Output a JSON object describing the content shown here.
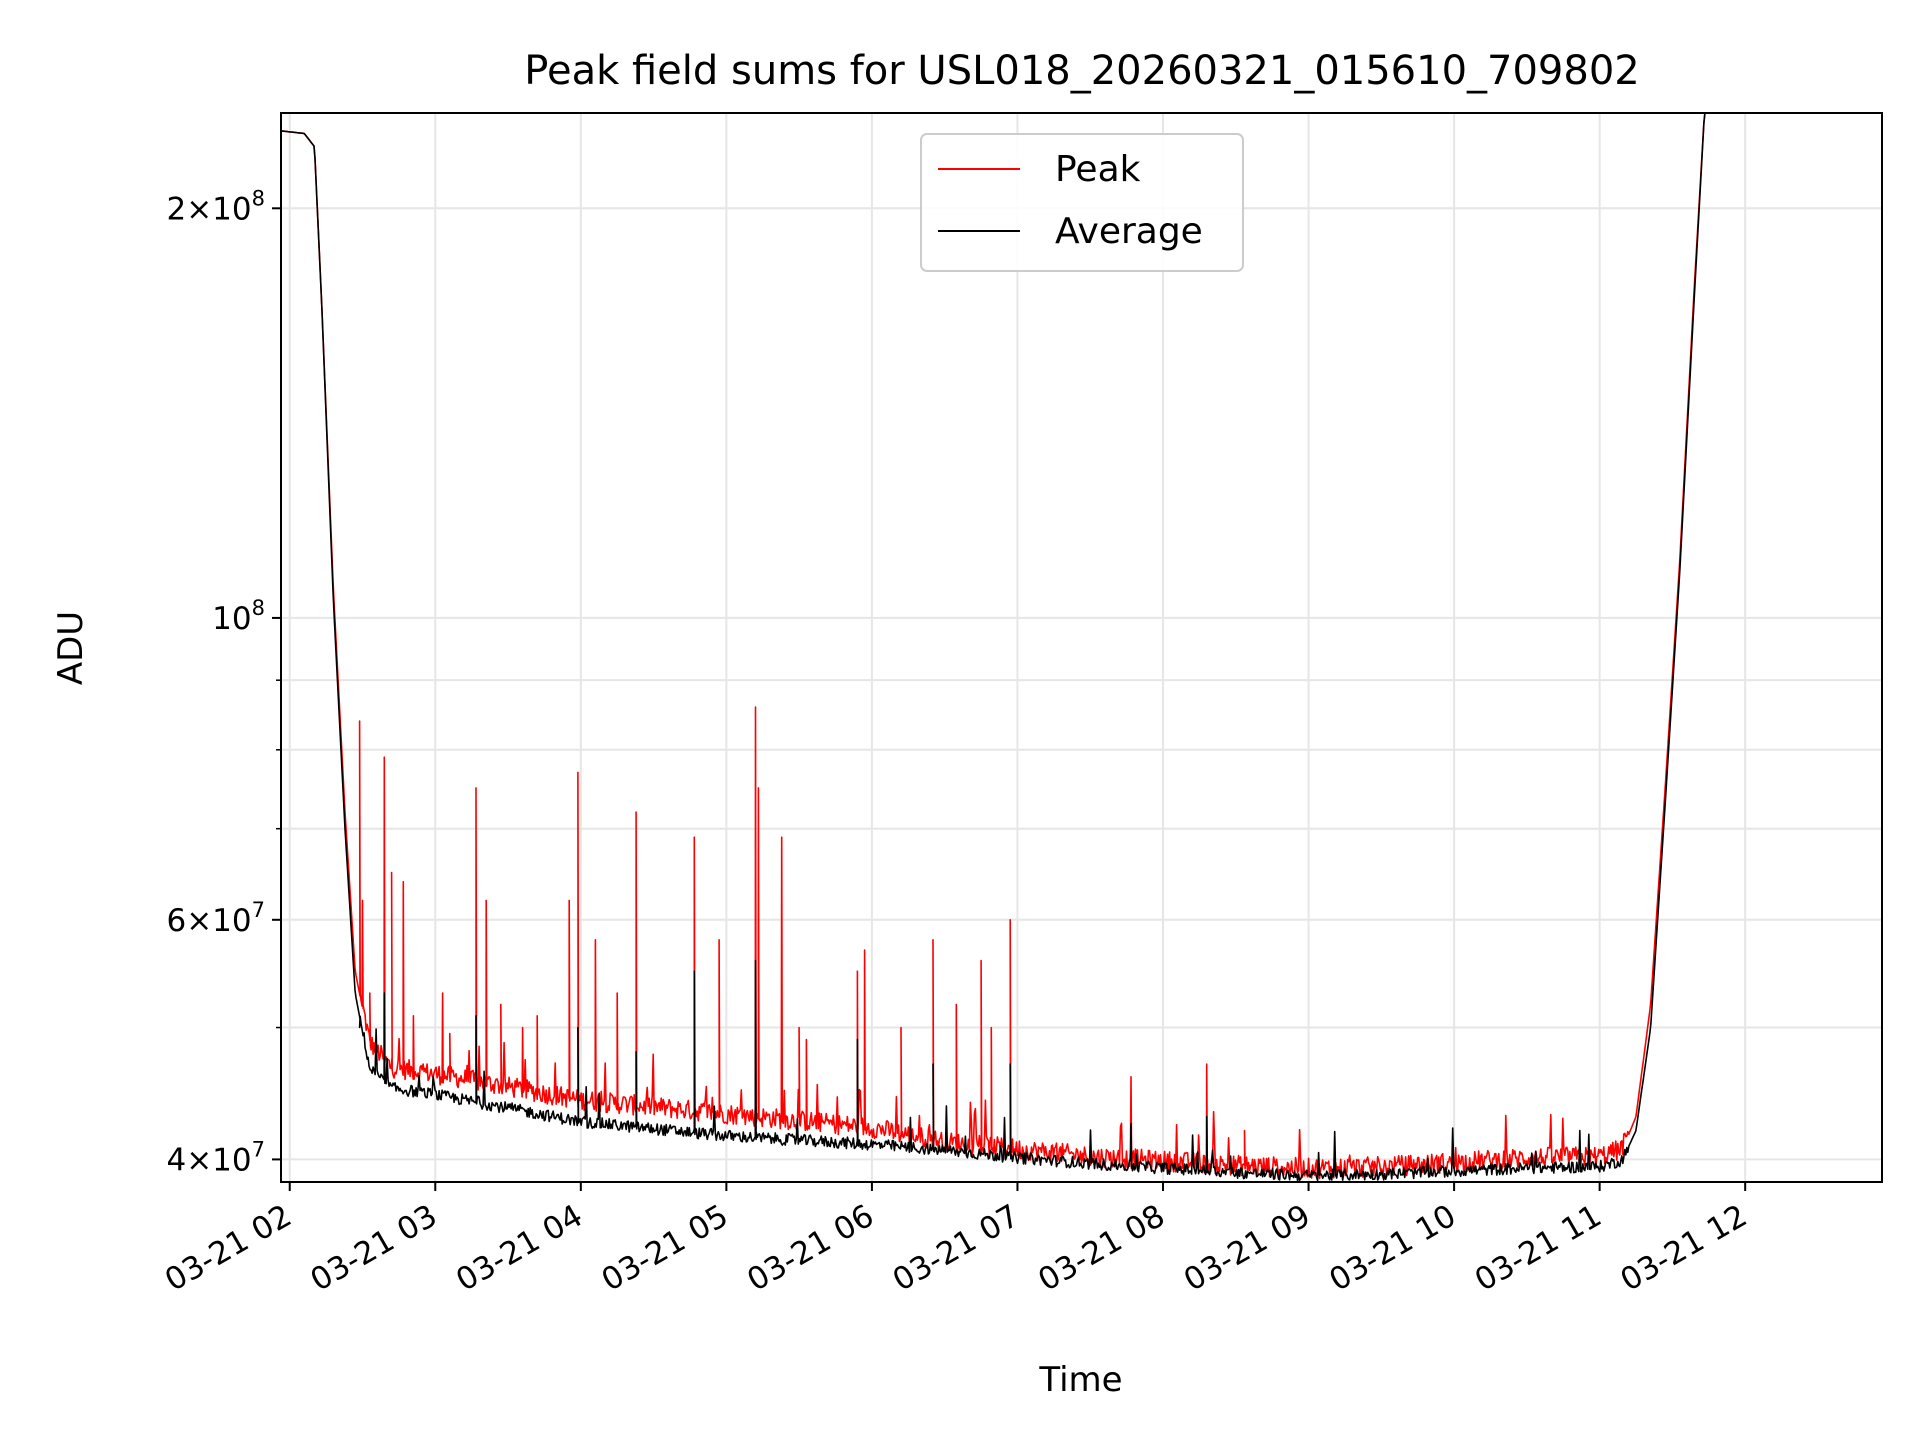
{
  "chart_data": {
    "type": "line",
    "title": "Peak field sums for USL018_20260321_015610_709802",
    "xlabel": "Time",
    "ylabel": "ADU",
    "yscale": "log",
    "ylim": [
      38500000,
      235000000
    ],
    "xlim_hours": [
      1.94,
      12.94
    ],
    "grid": true,
    "legend_position": "top-center",
    "x_tick_labels": [
      "03-21 02",
      "03-21 03",
      "03-21 04",
      "03-21 05",
      "03-21 06",
      "03-21 07",
      "03-21 08",
      "03-21 09",
      "03-21 10",
      "03-21 11",
      "03-21 12"
    ],
    "x_tick_hours": [
      2,
      3,
      4,
      5,
      6,
      7,
      8,
      9,
      10,
      11,
      12
    ],
    "y_major_ticks": [
      {
        "value": 200000000,
        "mantissa": "2×10",
        "exp": "8"
      },
      {
        "value": 100000000,
        "mantissa": "10",
        "exp": "8"
      },
      {
        "value": 60000000,
        "mantissa": "6×10",
        "exp": "7"
      },
      {
        "value": 40000000,
        "mantissa": "4×10",
        "exp": "7"
      }
    ],
    "y_minor_ticks": [
      90000000,
      80000000,
      70000000,
      50000000
    ],
    "series": [
      {
        "name": "Peak",
        "color": "#ff0000",
        "baseline": [
          [
            1.94,
            228000000
          ],
          [
            2.1,
            227000000
          ],
          [
            2.17,
            222000000
          ],
          [
            2.22,
            170000000
          ],
          [
            2.3,
            105000000
          ],
          [
            2.38,
            72000000
          ],
          [
            2.45,
            55000000
          ],
          [
            2.55,
            48500000
          ],
          [
            2.7,
            46500000
          ],
          [
            3.0,
            46000000
          ],
          [
            3.5,
            45000000
          ],
          [
            4.0,
            44000000
          ],
          [
            4.5,
            43500000
          ],
          [
            5.0,
            43000000
          ],
          [
            5.5,
            42500000
          ],
          [
            6.0,
            42000000
          ],
          [
            6.5,
            41000000
          ],
          [
            7.0,
            40500000
          ],
          [
            7.5,
            40000000
          ],
          [
            8.0,
            39700000
          ],
          [
            8.5,
            39400000
          ],
          [
            9.0,
            39200000
          ],
          [
            9.5,
            39300000
          ],
          [
            10.0,
            39600000
          ],
          [
            10.5,
            39900000
          ],
          [
            11.0,
            40000000
          ],
          [
            11.15,
            40500000
          ],
          [
            11.25,
            43000000
          ],
          [
            11.35,
            52000000
          ],
          [
            11.45,
            75000000
          ],
          [
            11.55,
            110000000
          ],
          [
            11.65,
            175000000
          ],
          [
            11.72,
            235000000
          ],
          [
            12.94,
            235000000
          ]
        ],
        "spikes": [
          [
            2.48,
            84000000
          ],
          [
            2.5,
            62000000
          ],
          [
            2.55,
            53000000
          ],
          [
            2.65,
            79000000
          ],
          [
            2.7,
            65000000
          ],
          [
            2.78,
            64000000
          ],
          [
            2.85,
            51000000
          ],
          [
            3.05,
            53000000
          ],
          [
            3.1,
            49500000
          ],
          [
            3.28,
            75000000
          ],
          [
            3.35,
            62000000
          ],
          [
            3.45,
            52000000
          ],
          [
            3.6,
            50000000
          ],
          [
            3.7,
            51000000
          ],
          [
            3.92,
            62000000
          ],
          [
            3.98,
            77000000
          ],
          [
            4.1,
            58000000
          ],
          [
            4.25,
            53000000
          ],
          [
            4.38,
            72000000
          ],
          [
            4.78,
            69000000
          ],
          [
            4.95,
            58000000
          ],
          [
            5.2,
            86000000
          ],
          [
            5.22,
            75000000
          ],
          [
            5.38,
            69000000
          ],
          [
            5.5,
            50000000
          ],
          [
            5.55,
            49000000
          ],
          [
            5.9,
            55000000
          ],
          [
            5.95,
            57000000
          ],
          [
            6.2,
            50000000
          ],
          [
            6.42,
            58000000
          ],
          [
            6.58,
            52000000
          ],
          [
            6.75,
            56000000
          ],
          [
            6.82,
            50000000
          ],
          [
            6.95,
            60000000
          ],
          [
            7.78,
            46000000
          ],
          [
            8.3,
            47000000
          ],
          [
            8.56,
            42000000
          ]
        ]
      },
      {
        "name": "Average",
        "color": "#000000",
        "baseline": [
          [
            1.94,
            228000000
          ],
          [
            2.1,
            227000000
          ],
          [
            2.17,
            222000000
          ],
          [
            2.22,
            170000000
          ],
          [
            2.3,
            103000000
          ],
          [
            2.38,
            70000000
          ],
          [
            2.45,
            53000000
          ],
          [
            2.55,
            46500000
          ],
          [
            2.7,
            45000000
          ],
          [
            3.0,
            44500000
          ],
          [
            3.5,
            43500000
          ],
          [
            4.0,
            42500000
          ],
          [
            4.5,
            42000000
          ],
          [
            5.0,
            41500000
          ],
          [
            5.5,
            41200000
          ],
          [
            6.0,
            40900000
          ],
          [
            6.5,
            40500000
          ],
          [
            7.0,
            40000000
          ],
          [
            7.5,
            39600000
          ],
          [
            8.0,
            39300000
          ],
          [
            8.5,
            39000000
          ],
          [
            9.0,
            38800000
          ],
          [
            9.5,
            38900000
          ],
          [
            10.0,
            39100000
          ],
          [
            10.5,
            39300000
          ],
          [
            11.0,
            39400000
          ],
          [
            11.15,
            39800000
          ],
          [
            11.25,
            42000000
          ],
          [
            11.35,
            50000000
          ],
          [
            11.45,
            73000000
          ],
          [
            11.55,
            108000000
          ],
          [
            11.65,
            172000000
          ],
          [
            11.72,
            235000000
          ],
          [
            12.94,
            235000000
          ]
        ],
        "spikes": [
          [
            2.48,
            50000000
          ],
          [
            2.65,
            53000000
          ],
          [
            3.28,
            51000000
          ],
          [
            3.98,
            50000000
          ],
          [
            4.38,
            48000000
          ],
          [
            4.78,
            55000000
          ],
          [
            5.2,
            56000000
          ],
          [
            5.9,
            49000000
          ],
          [
            6.42,
            47000000
          ],
          [
            6.95,
            47000000
          ],
          [
            7.78,
            42500000
          ],
          [
            8.3,
            43000000
          ]
        ]
      }
    ]
  }
}
